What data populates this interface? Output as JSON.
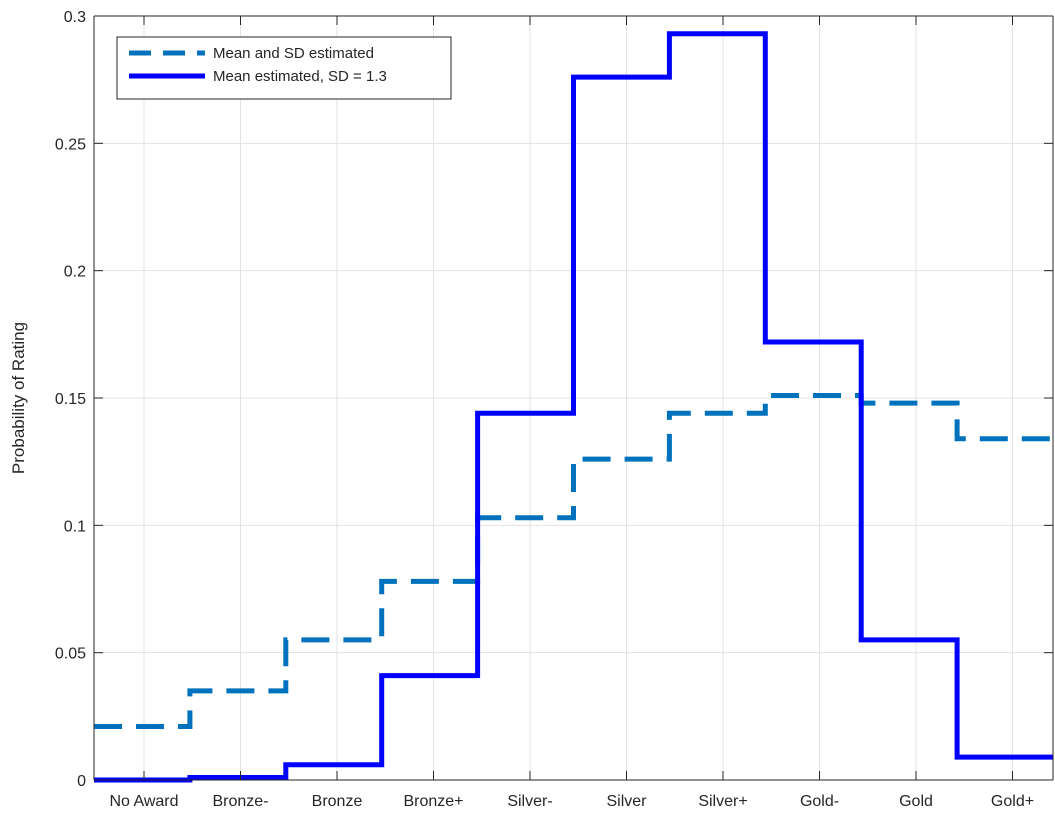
{
  "chart_data": {
    "type": "line",
    "step": true,
    "categories": [
      "No Award",
      "Bronze-",
      "Bronze",
      "Bronze+",
      "Silver-",
      "Silver",
      "Silver+",
      "Gold-",
      "Gold",
      "Gold+"
    ],
    "xlabel": "",
    "ylabel": "Probability of Rating",
    "ylim": [
      0,
      0.3
    ],
    "yticks": [
      0,
      0.05,
      0.1,
      0.15,
      0.2,
      0.25,
      0.3
    ],
    "ytick_labels": [
      "0",
      "0.05",
      "0.1",
      "0.15",
      "0.2",
      "0.25",
      "0.3"
    ],
    "grid": true,
    "legend_position": "top-left",
    "series": [
      {
        "name": "Mean and SD estimated",
        "style": "dashed",
        "color": "#0072BD",
        "values": [
          0.021,
          0.035,
          0.055,
          0.078,
          0.103,
          0.126,
          0.144,
          0.151,
          0.148,
          0.134
        ]
      },
      {
        "name": "Mean estimated, SD = 1.3",
        "style": "solid",
        "color": "#0000FF",
        "values": [
          0.0,
          0.001,
          0.006,
          0.041,
          0.144,
          0.276,
          0.293,
          0.172,
          0.055,
          0.009
        ]
      }
    ]
  }
}
